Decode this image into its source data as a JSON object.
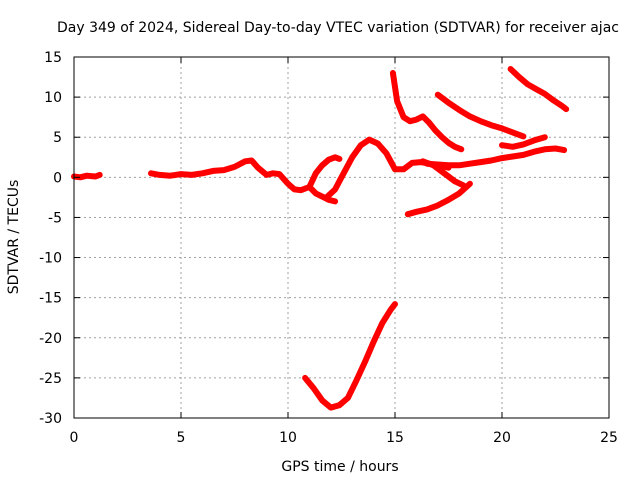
{
  "chart_data": {
    "type": "scatter",
    "title": "Day 349 of 2024, Sidereal Day-to-day VTEC variation (SDTVAR) for receiver ajac",
    "xlabel": "GPS time / hours",
    "ylabel": "SDTVAR / TECUs",
    "xlim": [
      0,
      25
    ],
    "ylim": [
      -30,
      15
    ],
    "xticks": [
      0,
      5,
      10,
      15,
      20,
      25
    ],
    "yticks": [
      15,
      10,
      5,
      0,
      -5,
      -10,
      -15,
      -20,
      -25,
      -30
    ],
    "grid": true,
    "color": "#ff0000",
    "series": [
      {
        "name": "early-arc",
        "x": [
          0.0,
          0.3,
          0.6,
          1.0,
          1.2
        ],
        "y": [
          0.1,
          0.0,
          0.2,
          0.1,
          0.3
        ]
      },
      {
        "name": "main-arc",
        "x": [
          3.6,
          4.0,
          4.5,
          5.0,
          5.5,
          6.0,
          6.5,
          7.0,
          7.5,
          8.0,
          8.3,
          8.6,
          9.0,
          9.3,
          9.6,
          10.0,
          10.3,
          10.6,
          11.0,
          11.3,
          11.6,
          11.9,
          12.2
        ],
        "y": [
          0.5,
          0.3,
          0.2,
          0.4,
          0.3,
          0.5,
          0.8,
          0.9,
          1.3,
          2.0,
          2.1,
          1.2,
          0.3,
          0.5,
          0.4,
          -0.8,
          -1.5,
          -1.6,
          -1.2,
          -2.0,
          -2.4,
          -2.8,
          -3.0
        ]
      },
      {
        "name": "rise-arc",
        "x": [
          11.0,
          11.3,
          11.6,
          11.9,
          12.2,
          12.4
        ],
        "y": [
          -1.2,
          0.5,
          1.5,
          2.2,
          2.5,
          2.3
        ]
      },
      {
        "name": "loop-arc",
        "x": [
          11.8,
          12.2,
          12.6,
          13.0,
          13.4,
          13.8,
          14.2,
          14.6,
          15.0,
          15.4,
          15.8,
          16.2,
          16.6,
          17.0,
          17.5
        ],
        "y": [
          -2.5,
          -1.5,
          0.5,
          2.5,
          4.0,
          4.7,
          4.2,
          3.0,
          1.0,
          1.0,
          1.8,
          1.9,
          1.7,
          1.5,
          1.2
        ]
      },
      {
        "name": "bump-arc",
        "x": [
          16.3,
          16.8,
          17.3,
          17.8,
          18.2
        ],
        "y": [
          2.0,
          1.5,
          0.5,
          -0.5,
          -1.0
        ]
      },
      {
        "name": "baseline-tail",
        "x": [
          16.5,
          17.0,
          17.5,
          18.0,
          18.5,
          19.0,
          19.5,
          20.0,
          20.5,
          21.0,
          21.5,
          22.0,
          22.5,
          22.9
        ],
        "y": [
          1.7,
          1.6,
          1.5,
          1.5,
          1.7,
          1.9,
          2.1,
          2.4,
          2.6,
          2.8,
          3.2,
          3.5,
          3.6,
          3.4
        ]
      },
      {
        "name": "high-arc-a",
        "x": [
          14.9,
          15.1,
          15.4,
          15.7,
          16.0,
          16.3,
          16.6,
          16.9,
          17.2,
          17.5,
          17.8,
          18.1
        ],
        "y": [
          13.0,
          9.5,
          7.5,
          7.0,
          7.2,
          7.6,
          6.8,
          5.8,
          5.0,
          4.3,
          3.8,
          3.5
        ]
      },
      {
        "name": "high-arc-b",
        "x": [
          17.0,
          17.5,
          18.0,
          18.5,
          19.0,
          19.5,
          20.0,
          20.5,
          21.0
        ],
        "y": [
          10.3,
          9.3,
          8.4,
          7.6,
          7.0,
          6.5,
          6.1,
          5.6,
          5.1
        ]
      },
      {
        "name": "high-arc-c",
        "x": [
          20.4,
          20.8,
          21.2,
          21.6,
          22.0,
          22.4,
          22.8,
          23.0
        ],
        "y": [
          13.5,
          12.5,
          11.6,
          11.0,
          10.4,
          9.6,
          8.9,
          8.5
        ]
      },
      {
        "name": "mid-arc",
        "x": [
          20.0,
          20.5,
          21.0,
          21.5,
          22.0
        ],
        "y": [
          4.0,
          3.8,
          4.1,
          4.6,
          5.0
        ]
      },
      {
        "name": "low-arc",
        "x": [
          15.6,
          16.0,
          16.5,
          17.0,
          17.5,
          18.0,
          18.5
        ],
        "y": [
          -4.6,
          -4.3,
          -4.0,
          -3.5,
          -2.8,
          -2.0,
          -0.8
        ]
      },
      {
        "name": "deep-arc",
        "x": [
          10.8,
          11.2,
          11.6,
          12.0,
          12.4,
          12.8,
          13.2,
          13.6,
          14.0,
          14.4,
          14.8,
          15.0
        ],
        "y": [
          -25.0,
          -26.3,
          -27.8,
          -28.7,
          -28.4,
          -27.5,
          -25.3,
          -23.0,
          -20.5,
          -18.2,
          -16.5,
          -15.8
        ]
      }
    ]
  }
}
